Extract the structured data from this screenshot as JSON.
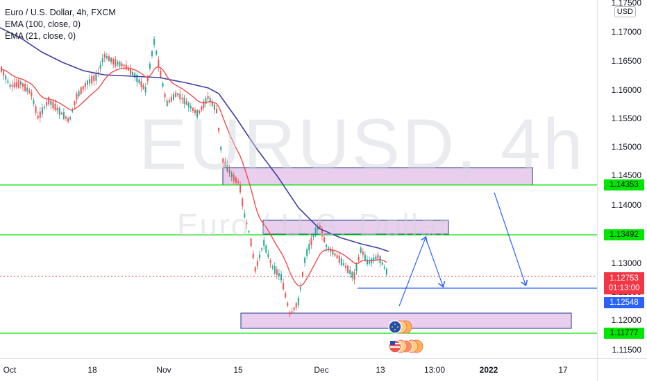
{
  "legend": {
    "symbol_line": "Euro / U.S. Dollar, 4h, FXCM",
    "ema_100": "EMA (100, close, 0)",
    "ema_21": "EMA (21, close, 0)"
  },
  "watermark": {
    "symbol": "EURUSD, 4h",
    "name": "Euro / U.S. Dollar"
  },
  "price_axis": {
    "currency": "USD",
    "ticks": [
      "1.17500",
      "1.17000",
      "1.16500",
      "1.16000",
      "1.15500",
      "1.15000",
      "1.14500",
      "1.14000",
      "1.13500",
      "1.13000",
      "1.12500",
      "1.12000",
      "1.11500"
    ]
  },
  "level_tags": [
    "1.14353",
    "1.13492",
    "1.11777"
  ],
  "current_price": {
    "price": "1.12753",
    "countdown": "01:13:00"
  },
  "blue_level": "1.12548",
  "time_axis": {
    "ticks": [
      {
        "label": "Oct",
        "bold": false
      },
      {
        "label": "18",
        "bold": false
      },
      {
        "label": "Nov",
        "bold": false
      },
      {
        "label": "15",
        "bold": false
      },
      {
        "label": "Dec",
        "bold": false
      },
      {
        "label": "13",
        "bold": false
      },
      {
        "label": "13:00",
        "bold": false
      },
      {
        "label": "2022",
        "bold": true
      },
      {
        "label": "17",
        "bold": false
      }
    ]
  },
  "colors": {
    "bull": "#26a69a",
    "bear": "#ef5350",
    "ema100": "#3f3fa0",
    "ema21": "#f04c4c",
    "level": "#00e600",
    "zone_fill": "#e1bee7",
    "zone_border": "#1e3a8a",
    "arrow": "#2962ff"
  },
  "icons": [
    "flag-eu-icon",
    "flag-us-icon"
  ]
}
